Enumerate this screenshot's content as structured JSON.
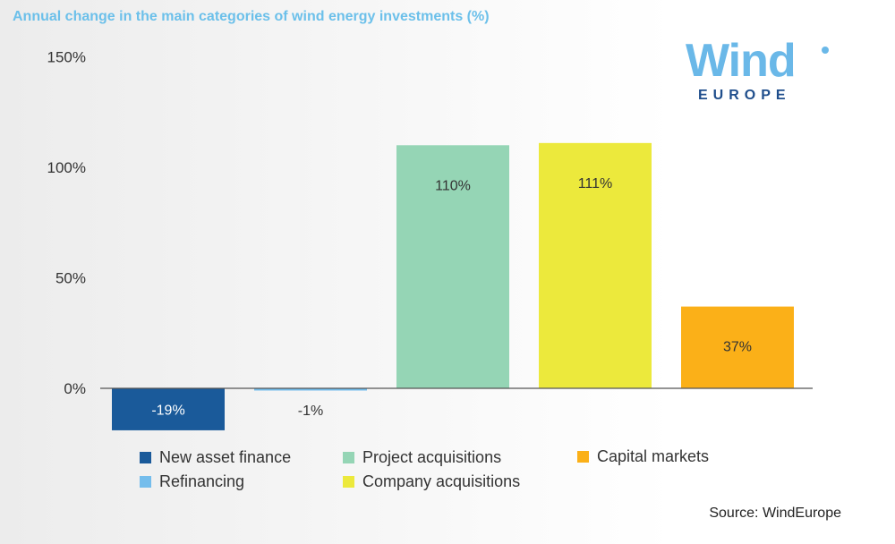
{
  "title": "Annual change in the main categories of wind energy investments (%)",
  "logo": {
    "word": "Wind",
    "sub": "EUROPE"
  },
  "source": "Source: WindEurope",
  "chart_data": {
    "type": "bar",
    "categories": [
      "New asset finance",
      "Refinancing",
      "Project acquisitions",
      "Company acquisitions",
      "Capital markets"
    ],
    "values": [
      -19,
      -1,
      110,
      111,
      37
    ],
    "labels": [
      "-19%",
      "-1%",
      "110%",
      "111%",
      "37%"
    ],
    "colors": [
      "#1a5a9a",
      "#74bdec",
      "#95d5b5",
      "#ece93c",
      "#fbb018"
    ],
    "label_colors": [
      "#ffffff",
      "#333333",
      "#333333",
      "#333333",
      "#333333"
    ],
    "yticks": [
      0,
      50,
      100,
      150
    ],
    "ytick_labels": [
      "0%",
      "50%",
      "100%",
      "150%"
    ],
    "ylim": [
      -20,
      150
    ],
    "legend": [
      {
        "name": "New asset finance",
        "color": "#1a5a9a"
      },
      {
        "name": "Refinancing",
        "color": "#74bdec"
      },
      {
        "name": "Project acquisitions",
        "color": "#95d5b5"
      },
      {
        "name": "Company acquisitions",
        "color": "#ece93c"
      },
      {
        "name": "Capital markets",
        "color": "#fbb018"
      }
    ],
    "legend_position": "bottom",
    "grid": false
  }
}
